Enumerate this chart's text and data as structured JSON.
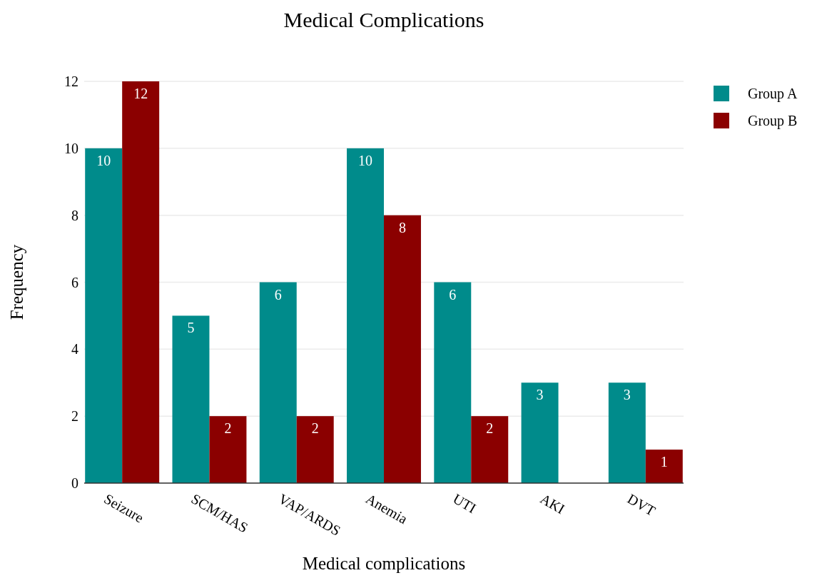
{
  "chart_data": {
    "type": "bar",
    "title": "Medical Complications",
    "xlabel": "Medical complications",
    "ylabel": "Frequency",
    "categories": [
      "Seizure",
      "SCM/HAS",
      "VAP/ARDS",
      "Anemia",
      "UTI",
      "AKI",
      "DVT"
    ],
    "series": [
      {
        "name": "Group A",
        "color": "#008b8b",
        "values": [
          10,
          5,
          6,
          10,
          6,
          3,
          3
        ],
        "value_labels": [
          "10",
          "5",
          "6",
          "10",
          "6",
          "3",
          "3"
        ]
      },
      {
        "name": "Group B",
        "color": "#8b0000",
        "values": [
          12,
          2,
          2,
          8,
          2,
          0,
          1
        ],
        "value_labels": [
          "12",
          "2",
          "2",
          "8",
          "2",
          null,
          "1"
        ]
      }
    ],
    "ylim": [
      0,
      12
    ],
    "yticks": [
      0,
      2,
      4,
      6,
      8,
      10,
      12
    ],
    "grid": "y",
    "legend": "top right"
  }
}
